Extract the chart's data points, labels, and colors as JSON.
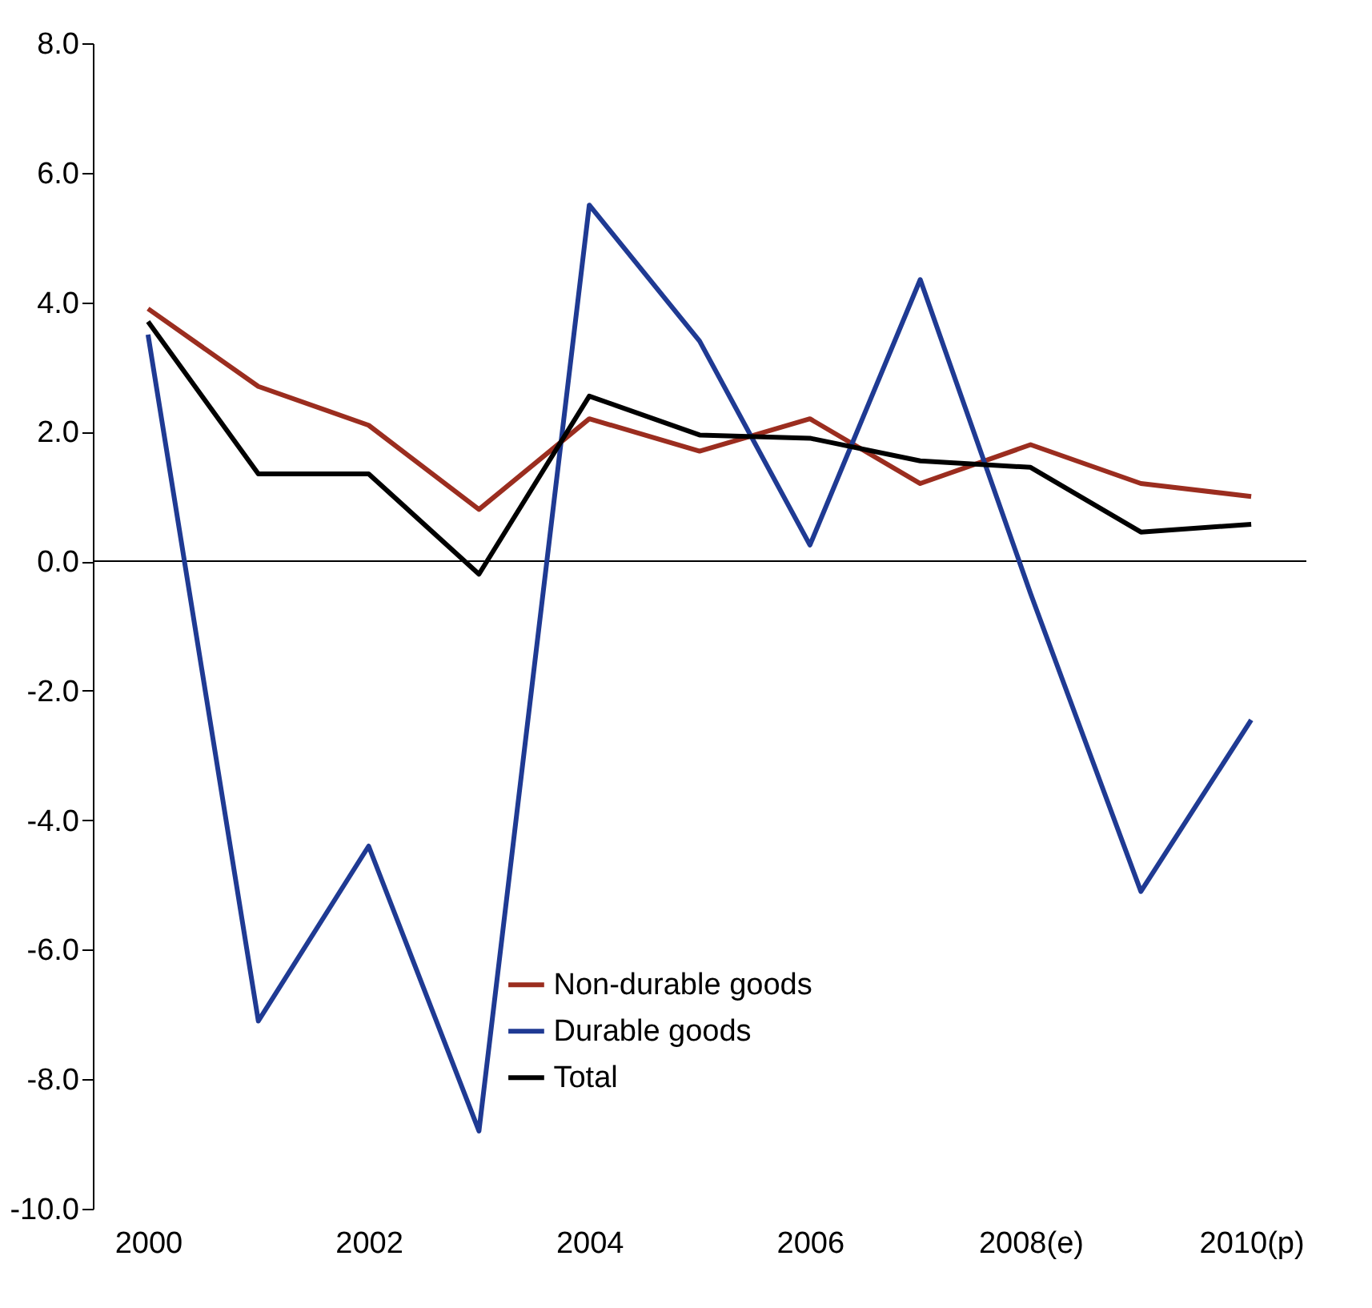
{
  "chart_data": {
    "type": "line",
    "categories": [
      "2000",
      null,
      "2002",
      null,
      "2004",
      null,
      "2006",
      null,
      "2008(e)",
      null,
      "2010(p)"
    ],
    "series": [
      {
        "name": "Non-durable goods",
        "color": "#9b2d1f",
        "values": [
          3.9,
          2.7,
          2.1,
          0.8,
          2.2,
          1.7,
          2.2,
          1.2,
          1.8,
          1.2,
          1.0
        ]
      },
      {
        "name": "Durable goods",
        "color": "#1f3a93",
        "values": [
          3.5,
          -7.1,
          -4.4,
          -8.8,
          5.5,
          3.4,
          0.25,
          4.35,
          -0.5,
          -5.1,
          -2.45
        ]
      },
      {
        "name": "Total",
        "color": "#000000",
        "values": [
          3.7,
          1.35,
          1.35,
          -0.2,
          2.55,
          1.95,
          1.9,
          1.55,
          1.45,
          0.45,
          0.57
        ]
      }
    ],
    "ylim": [
      -10,
      8
    ],
    "yticks": [
      {
        "value": -10,
        "label": "-10.0"
      },
      {
        "value": -8,
        "label": "-8.0"
      },
      {
        "value": -6,
        "label": "-6.0"
      },
      {
        "value": -4,
        "label": "-4.0"
      },
      {
        "value": -2,
        "label": "-2.0"
      },
      {
        "value": 0,
        "label": "0.0"
      },
      {
        "value": 2,
        "label": "2.0"
      },
      {
        "value": 4,
        "label": "4.0"
      },
      {
        "value": 6,
        "label": "6.0"
      },
      {
        "value": 8,
        "label": "8.0"
      }
    ],
    "ref_lines": [
      {
        "axis": "y",
        "value": 0,
        "color": "#000000"
      }
    ],
    "grid": false,
    "legend": "bottom",
    "marker": "none",
    "line_style": "solid"
  }
}
